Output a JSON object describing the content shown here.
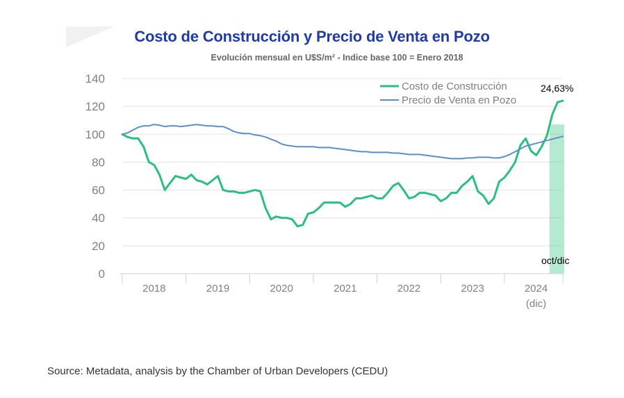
{
  "chart_data": {
    "type": "line",
    "title": "Costo de Construcción y Precio de Venta en Pozo",
    "subtitle": "Evolución mensual en U$S/m² - Indice base 100 = Enero 2018",
    "ylim": [
      0,
      140
    ],
    "yticks": [
      "0",
      "20",
      "40",
      "60",
      "80",
      "100",
      "120",
      "140"
    ],
    "xticks": [
      "2018",
      "2019",
      "2020",
      "2021",
      "2022",
      "2023",
      "2024"
    ],
    "xtick_extra": "(dic)",
    "x_start": 2018.0,
    "x_end": 2024.917,
    "series": [
      {
        "name": "Costo de Construcción",
        "color": "#2bbf7e",
        "values": [
          100,
          98,
          97,
          97,
          91,
          80,
          78,
          71,
          60,
          65,
          70,
          69,
          68,
          71,
          67,
          66,
          64,
          67,
          70,
          60,
          59,
          59,
          58,
          58,
          59,
          60,
          59,
          47,
          39,
          41,
          40,
          40,
          39,
          34,
          35,
          43,
          44,
          47,
          51,
          51,
          51,
          51,
          48,
          50,
          54,
          54,
          55,
          56,
          54,
          54,
          58,
          63,
          65,
          60,
          54,
          55,
          58,
          58,
          57,
          56,
          52,
          54,
          58,
          58,
          63,
          66,
          70,
          59,
          56,
          50,
          54,
          66,
          69,
          74,
          80,
          92,
          97,
          88,
          85,
          91,
          99,
          114,
          123,
          124
        ]
      },
      {
        "name": "Precio de Venta en Pozo",
        "color": "#5a8fc4",
        "values": [
          100,
          101,
          103,
          105,
          106,
          106,
          107,
          106.5,
          105.5,
          106,
          106,
          105.5,
          106,
          106.5,
          107,
          106.5,
          106,
          106,
          105.5,
          105.5,
          104,
          102,
          101,
          100.5,
          100.5,
          99.5,
          99,
          98,
          96.5,
          95,
          93,
          92,
          91.5,
          91,
          91,
          91,
          91,
          90.5,
          90.5,
          90.5,
          90,
          89.5,
          89,
          88.5,
          88,
          87.5,
          87.5,
          87,
          87,
          87,
          87,
          86.5,
          86.5,
          86,
          85.5,
          85.5,
          85.5,
          85,
          84.5,
          84,
          83.5,
          83,
          82.5,
          82.5,
          82.5,
          83,
          83,
          83.5,
          83.5,
          83.5,
          83,
          83,
          84,
          85.5,
          87.5,
          89.5,
          91.5,
          92.5,
          93.5,
          94.5,
          95.5,
          96.5,
          97.5,
          98.5
        ]
      }
    ],
    "highlight": {
      "from": 2024.75,
      "to": 2024.917,
      "value": 107,
      "label": "oct/dic",
      "color": "#2bbf7e"
    },
    "annotation": {
      "text": "24,63%",
      "x": 2024.8,
      "y": 124
    },
    "legend": "top-right"
  },
  "source": "Source: Metadata, analysis by the Chamber of Urban Developers (CEDU)"
}
